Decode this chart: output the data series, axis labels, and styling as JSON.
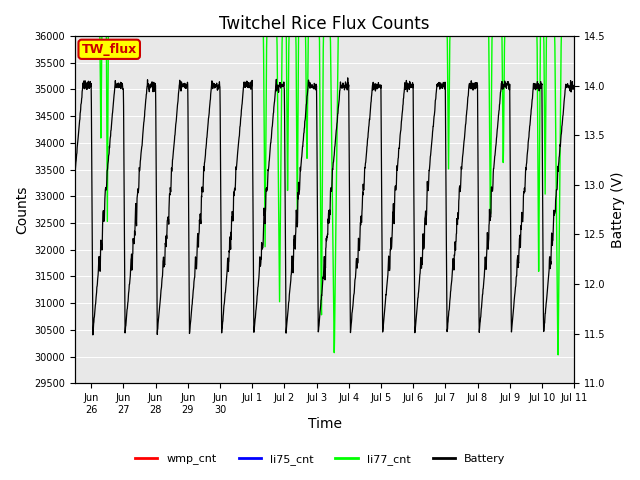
{
  "title": "Twitchel Rice Flux Counts",
  "xlabel": "Time",
  "ylabel_left": "Counts",
  "ylabel_right": "Battery (V)",
  "ylim_left": [
    29500,
    36000
  ],
  "ylim_right": [
    11.0,
    14.5
  ],
  "xtick_labels": [
    "Jun\n26",
    "Jun\n27",
    "Jun\n28",
    "Jun\n29",
    "Jun\n30",
    "Jul 1",
    "Jul 2",
    "Jul 3",
    "Jul 4",
    "Jul 5",
    "Jul 6",
    "Jul 7",
    "Jul 8",
    "Jul 9",
    "Jul 10",
    "Jul 11"
  ],
  "yticks_left": [
    29500,
    30000,
    30500,
    31000,
    31500,
    32000,
    32500,
    33000,
    33500,
    34000,
    34500,
    35000,
    35500,
    36000
  ],
  "yticks_right": [
    11.0,
    11.5,
    12.0,
    12.5,
    13.0,
    13.5,
    14.0,
    14.5
  ],
  "bg_color": "#e8e8e8",
  "grid_color": "#ffffff",
  "legend_entries": [
    "wmp_cnt",
    "li75_cnt",
    "li77_cnt",
    "Battery"
  ],
  "legend_colors": [
    "#ff0000",
    "#0000ff",
    "#00ff00",
    "#000000"
  ],
  "annotation_text": "TW_flux",
  "annotation_facecolor": "#ffff00",
  "annotation_edgecolor": "#cc0000",
  "annotation_textcolor": "#cc0000",
  "volt_max": 14.5,
  "volt_min": 11.0,
  "counts_max": 36000,
  "counts_min": 29500,
  "figsize": [
    6.4,
    4.8
  ],
  "dpi": 100
}
